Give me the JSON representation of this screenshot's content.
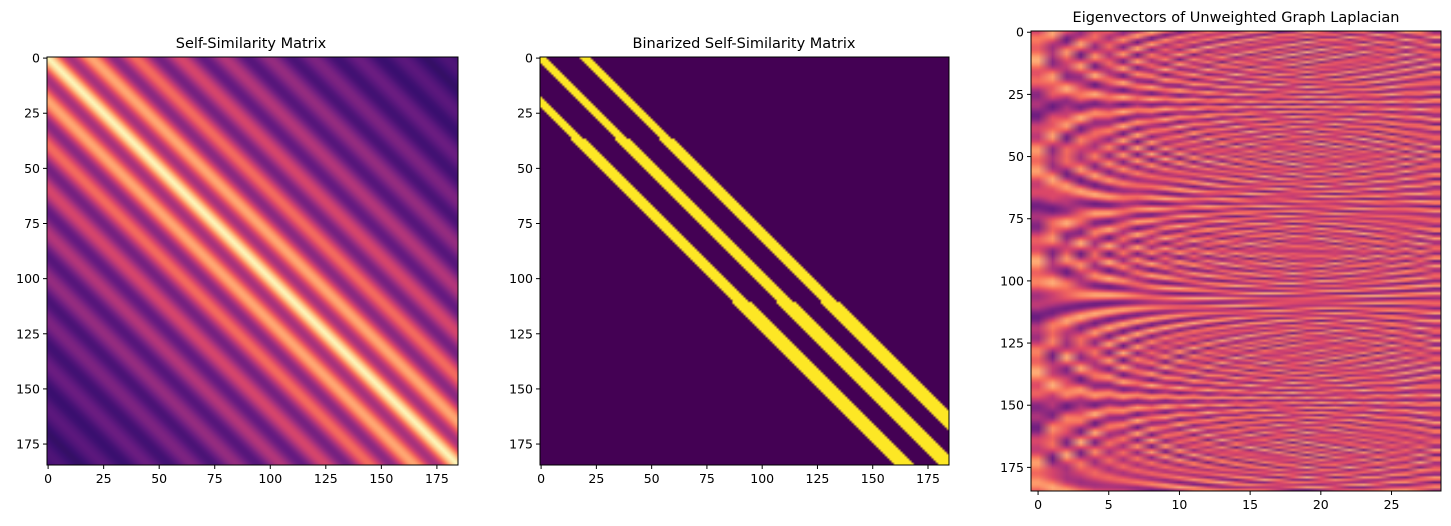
{
  "chart_data": [
    {
      "type": "heatmap",
      "title": "Self-Similarity Matrix",
      "colormap": "magma",
      "xlim": [
        -0.5,
        184.5
      ],
      "ylim": [
        184.5,
        -0.5
      ],
      "xticks": [
        0,
        25,
        50,
        75,
        100,
        125,
        150,
        175
      ],
      "yticks": [
        0,
        25,
        50,
        75,
        100,
        125,
        150,
        175
      ],
      "grid": false,
      "description_of_values": "symmetric; diagonal bright (near max); parallel off-diagonal bands with period about 20, intensity decaying with distance from diagonal"
    },
    {
      "type": "heatmap",
      "title": "Binarized Self-Similarity Matrix",
      "colormap": "viridis",
      "xlim": [
        -0.5,
        184.5
      ],
      "ylim": [
        184.5,
        -0.5
      ],
      "xticks": [
        0,
        25,
        50,
        75,
        100,
        125,
        150,
        175
      ],
      "yticks": [
        0,
        25,
        50,
        75,
        100,
        125,
        150,
        175
      ],
      "grid": false,
      "bands": [
        {
          "offset": -20,
          "value": 1
        },
        {
          "offset": 0,
          "value": 1
        },
        {
          "offset": 20,
          "value": 1
        }
      ],
      "background_value": 0
    },
    {
      "type": "heatmap",
      "title": "Eigenvectors of Unweighted Graph Laplacian",
      "colormap": "magma",
      "xlim": [
        -0.5,
        28.5
      ],
      "ylim": [
        184.5,
        -0.5
      ],
      "xticks": [
        0,
        5,
        10,
        15,
        20,
        25
      ],
      "yticks": [
        0,
        25,
        50,
        75,
        100,
        125,
        150,
        175
      ],
      "grid": false,
      "columns": 29,
      "rows": 185
    }
  ]
}
